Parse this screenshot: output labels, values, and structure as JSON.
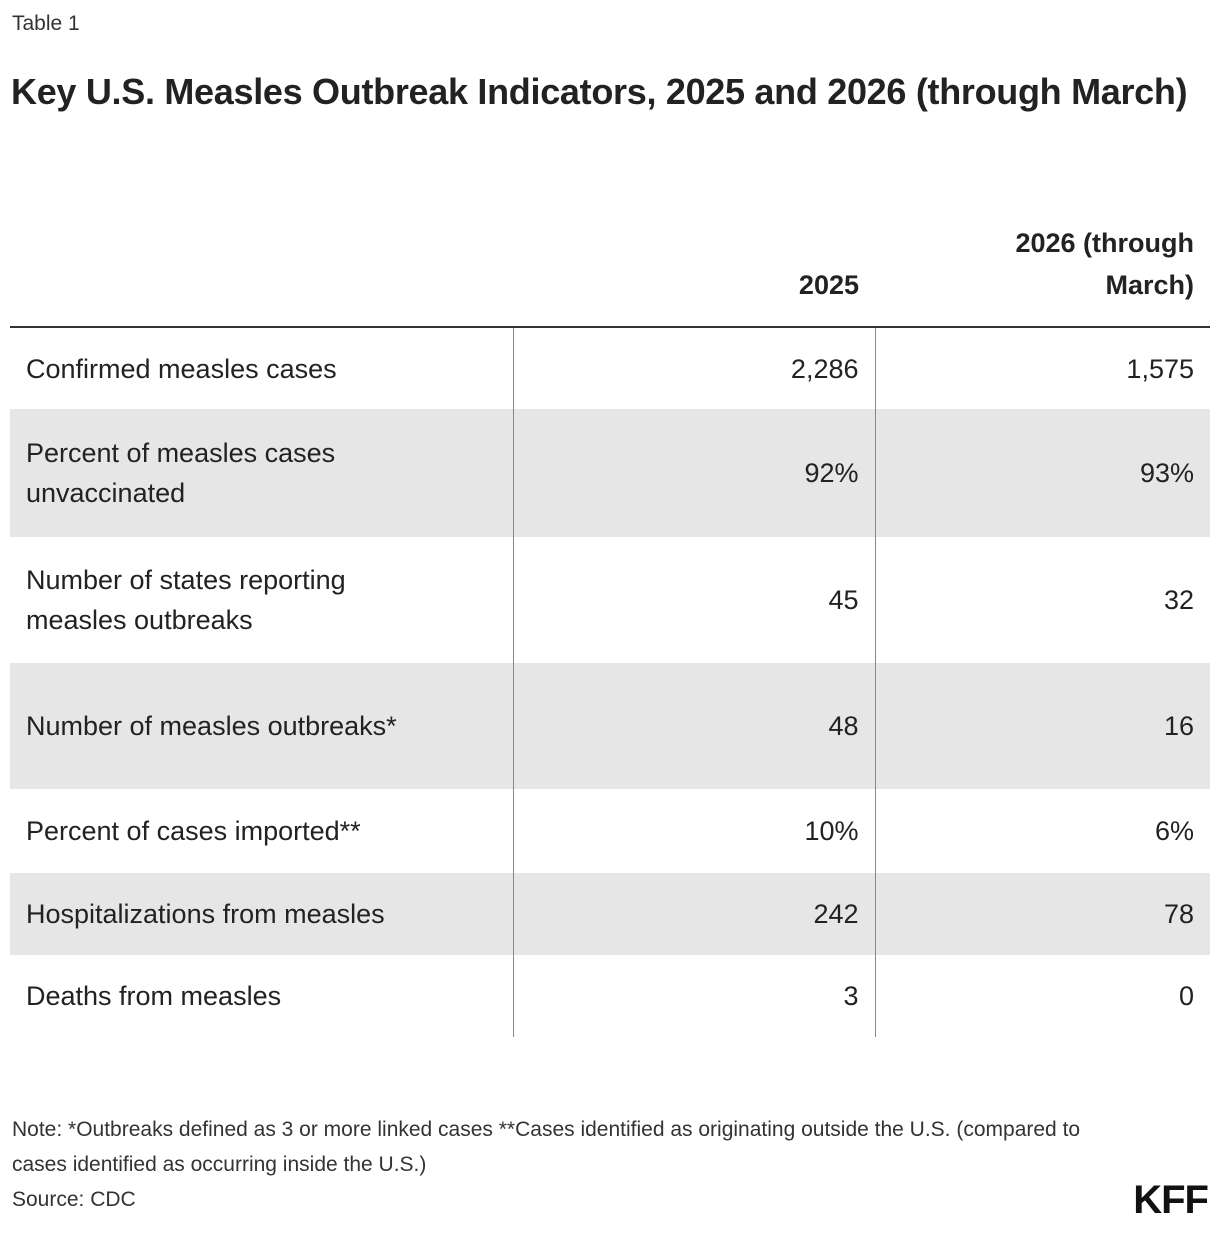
{
  "label": "Table 1",
  "title": "Key U.S. Measles Outbreak Indicators, 2025 and 2026 (through March)",
  "chart_data": {
    "type": "table",
    "columns": [
      "",
      "2025",
      "2026 (through March)"
    ],
    "rows": [
      {
        "indicator": "Confirmed measles cases",
        "y2025": "2,286",
        "y2026": "1,575"
      },
      {
        "indicator": "Percent of measles cases unvaccinated",
        "y2025": "92%",
        "y2026": "93%"
      },
      {
        "indicator": "Number of states reporting measles outbreaks",
        "y2025": "45",
        "y2026": "32"
      },
      {
        "indicator": "Number of measles outbreaks*",
        "y2025": "48",
        "y2026": "16"
      },
      {
        "indicator": "Percent of cases imported**",
        "y2025": "10%",
        "y2026": "6%"
      },
      {
        "indicator": "Hospitalizations from measles",
        "y2025": "242",
        "y2026": "78"
      },
      {
        "indicator": "Deaths from measles",
        "y2025": "3",
        "y2026": "0"
      }
    ],
    "row_shading": "#e6e6e6"
  },
  "note": "Note: *Outbreaks defined as 3 or more linked cases **Cases identified as originating outside the U.S. (compared to cases identified as occurring inside the U.S.)",
  "source": "Source: CDC",
  "logo": "KFF"
}
